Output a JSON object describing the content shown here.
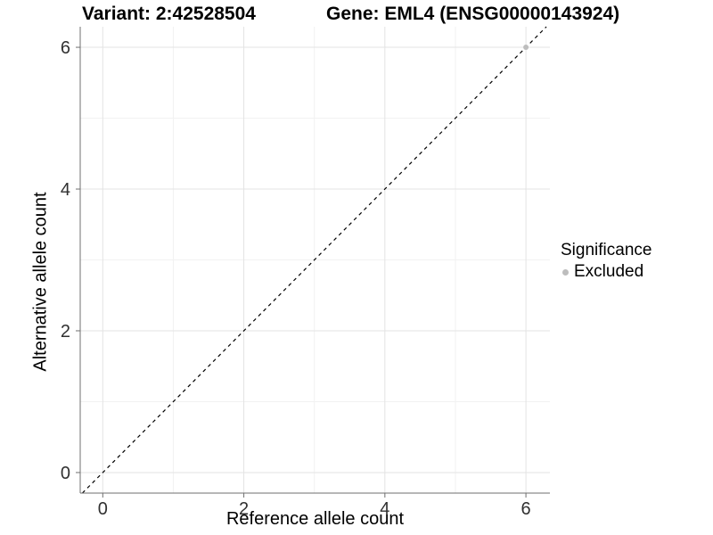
{
  "chart_data": {
    "type": "scatter",
    "title_left": "Variant: 2:42528504",
    "title_right": "Gene: EML4 (ENSG00000143924)",
    "xlabel": "Reference allele count",
    "ylabel": "Alternative allele count",
    "xlim": [
      -0.32,
      6.34
    ],
    "ylim": [
      -0.29,
      6.29
    ],
    "xticks": [
      0,
      2,
      4,
      6
    ],
    "yticks": [
      0,
      2,
      4,
      6
    ],
    "minor_xticks": [
      1,
      3,
      5
    ],
    "minor_yticks": [
      1,
      3,
      5
    ],
    "grid": "major+minor",
    "identity_line": {
      "type": "abline",
      "slope": 1,
      "intercept": 0,
      "style": "dashed",
      "color": "#000000"
    },
    "series": [
      {
        "name": "Excluded",
        "color": "#bdbdbd",
        "points": [
          [
            6,
            6
          ]
        ]
      }
    ],
    "legend": {
      "title": "Significance",
      "position": "right",
      "items": [
        {
          "label": "Excluded",
          "color": "#bdbdbd"
        }
      ]
    },
    "colors": {
      "background": "#ffffff",
      "major_grid": "#e3e3e3",
      "minor_grid": "#f2f2f2",
      "axis_line": "#6f6f6f",
      "tick_mark": "#6f6f6f",
      "tick_label": "#303030"
    }
  }
}
